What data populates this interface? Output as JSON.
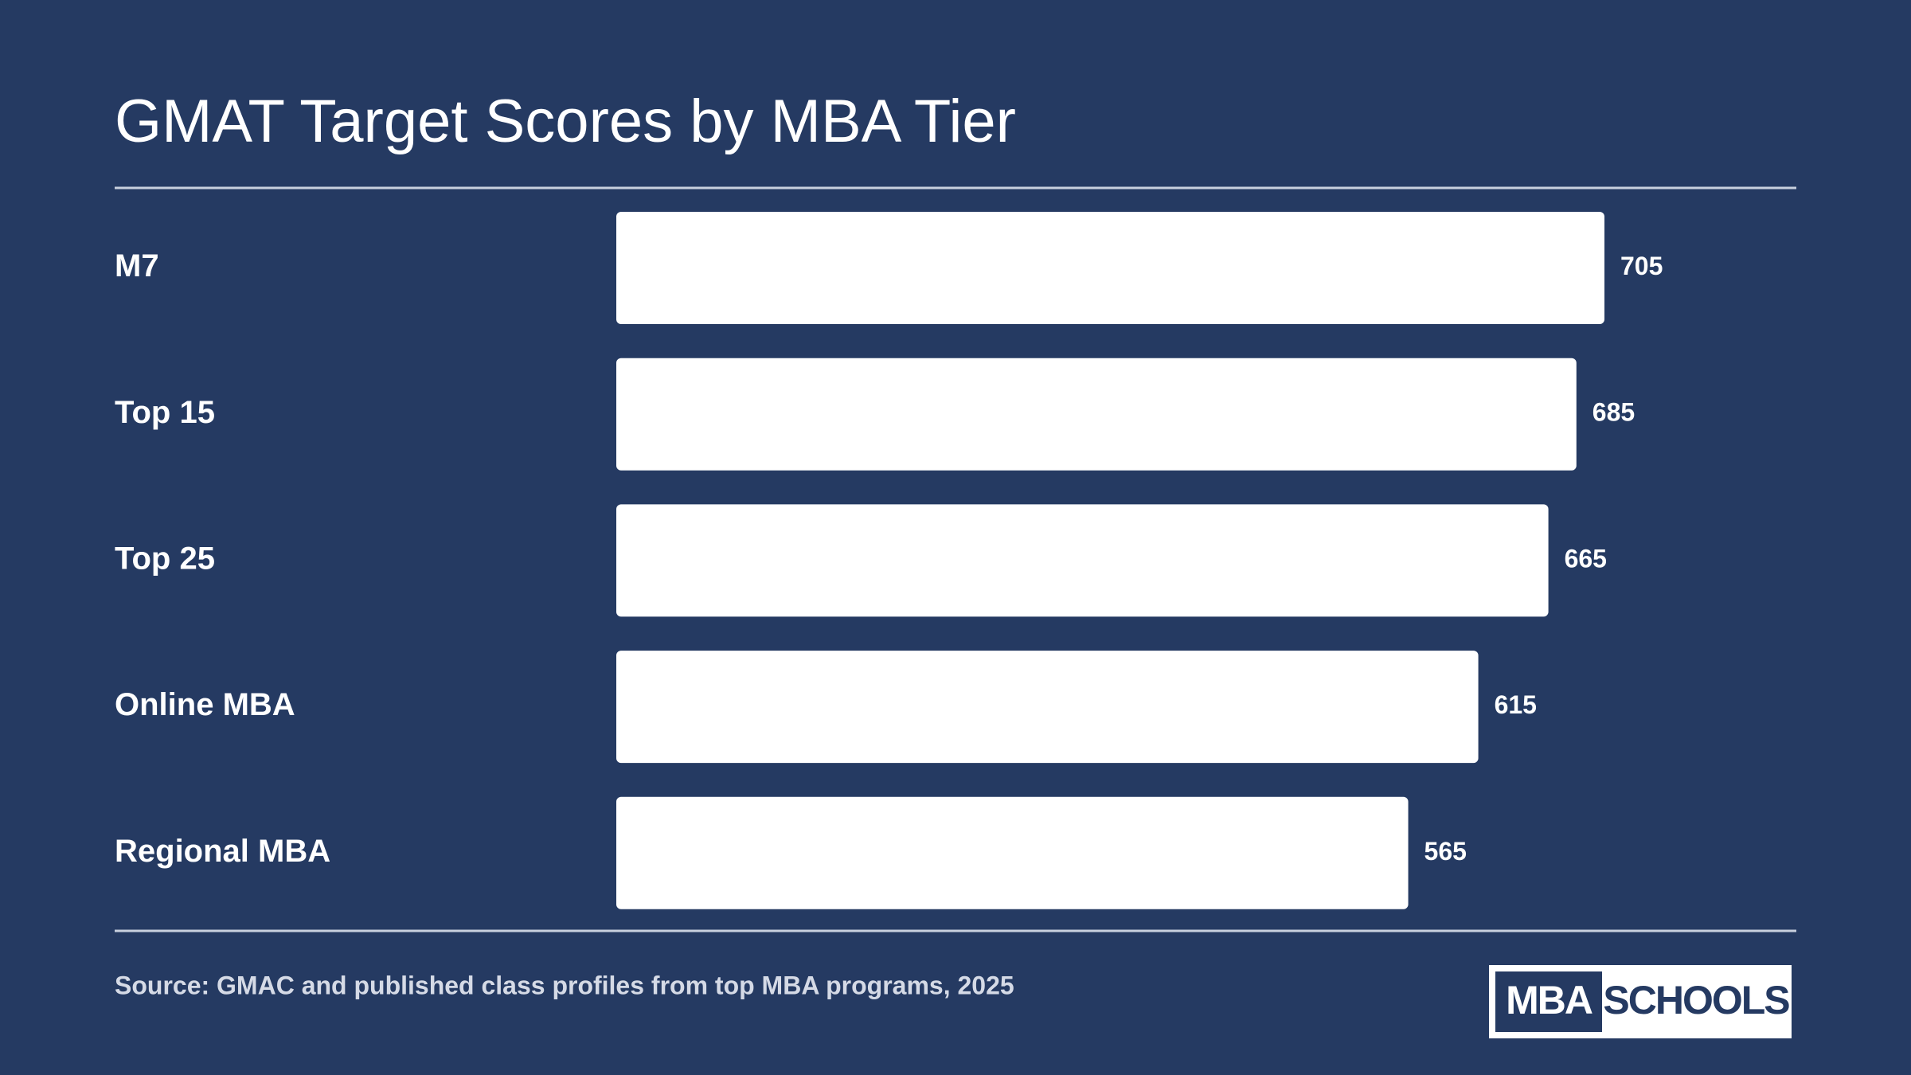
{
  "chart_data": {
    "type": "bar",
    "orientation": "horizontal",
    "title": "GMAT Target Scores by MBA Tier",
    "categories": [
      "M7",
      "Top 15",
      "Top 25",
      "Online MBA",
      "Regional MBA"
    ],
    "values": [
      705,
      685,
      665,
      615,
      565
    ],
    "color": "#ffffff",
    "source": "Source: GMAC and published class profiles from top MBA programs, 2025"
  },
  "logo": {
    "left": "MBA",
    "right": "SCHOOLS"
  }
}
